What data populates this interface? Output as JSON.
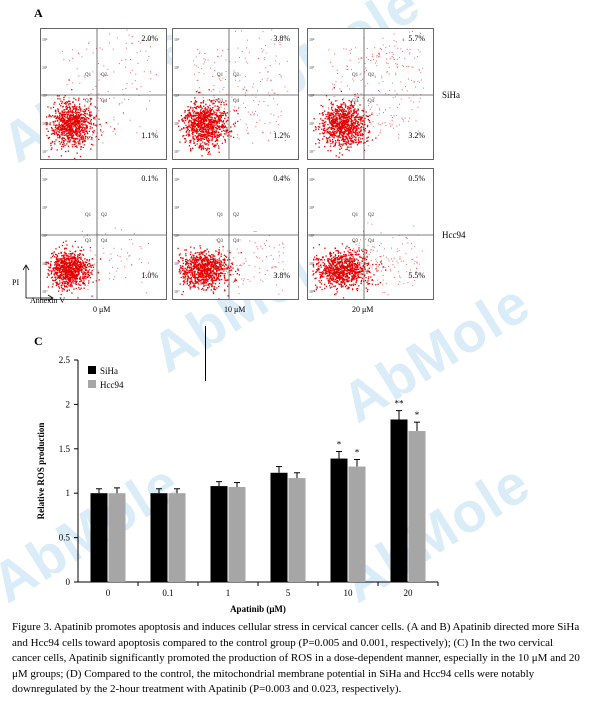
{
  "panels": {
    "a_label": "A",
    "c_label": "C"
  },
  "flow": {
    "row_labels": [
      "SiHa",
      "Hcc94"
    ],
    "concentrations": [
      "0 μM",
      "10 μM",
      "20 μM"
    ],
    "quadrant_labels": [
      "Q1",
      "Q2",
      "Q3",
      "Q4"
    ],
    "siha": [
      {
        "upper_right": "2.0%",
        "lower_right": "1.1%"
      },
      {
        "upper_right": "3.8%",
        "lower_right": "1.2%"
      },
      {
        "upper_right": "5.7%",
        "lower_right": "3.2%"
      }
    ],
    "hcc94": [
      {
        "upper_right": "0.1%",
        "lower_right": "1.0%"
      },
      {
        "upper_right": "0.4%",
        "lower_right": "3.8%"
      },
      {
        "upper_right": "0.5%",
        "lower_right": "5.5%"
      }
    ],
    "axis_y": "PI",
    "axis_x": "Annexin V"
  },
  "chart_data": {
    "type": "bar",
    "categories": [
      "0",
      "0.1",
      "1",
      "5",
      "10",
      "20"
    ],
    "series": [
      {
        "name": "SiHa",
        "values": [
          1.0,
          1.0,
          1.08,
          1.23,
          1.39,
          1.83
        ],
        "errors": [
          0.05,
          0.05,
          0.05,
          0.07,
          0.08,
          0.1
        ],
        "color": "#000000"
      },
      {
        "name": "Hcc94",
        "values": [
          1.0,
          1.0,
          1.07,
          1.17,
          1.3,
          1.7
        ],
        "errors": [
          0.06,
          0.05,
          0.05,
          0.06,
          0.08,
          0.1
        ],
        "color": "#a6a6a6"
      }
    ],
    "significance": [
      {
        "category": "10",
        "siha": "*",
        "hcc94": "*"
      },
      {
        "category": "20",
        "siha": "**",
        "hcc94": "*"
      }
    ],
    "ylim": [
      0,
      2.5
    ],
    "yticks": [
      "0",
      "0.5",
      "1",
      "1.5",
      "2",
      "2.5"
    ],
    "xlabel": "Apatinib (μM)",
    "ylabel": "Relative ROS production",
    "legend": "top-left"
  },
  "caption": "Figure 3. Apatinib promotes apoptosis and induces cellular stress in cervical cancer cells. (A and B) Apatinib directed more SiHa and Hcc94 cells toward apoptosis compared to the control group (P=0.005 and 0.001, respectively); (C) In the two cervical cancer cells, Apatinib significantly promoted the production of ROS in a dose-dependent manner, especially in the 10 μM and 20 μM groups; (D) Compared to the control, the mitochondrial membrane potential in SiHa and Hcc94 cells were notably downregulated by the 2-hour treatment with Apatinib (P=0.003 and 0.023,  respectively).",
  "watermark": "AbMole",
  "colors": {
    "dots": "#e60000",
    "siha_bar": "#000000",
    "hcc94_bar": "#a6a6a6",
    "watermark": "#78b9e1"
  }
}
